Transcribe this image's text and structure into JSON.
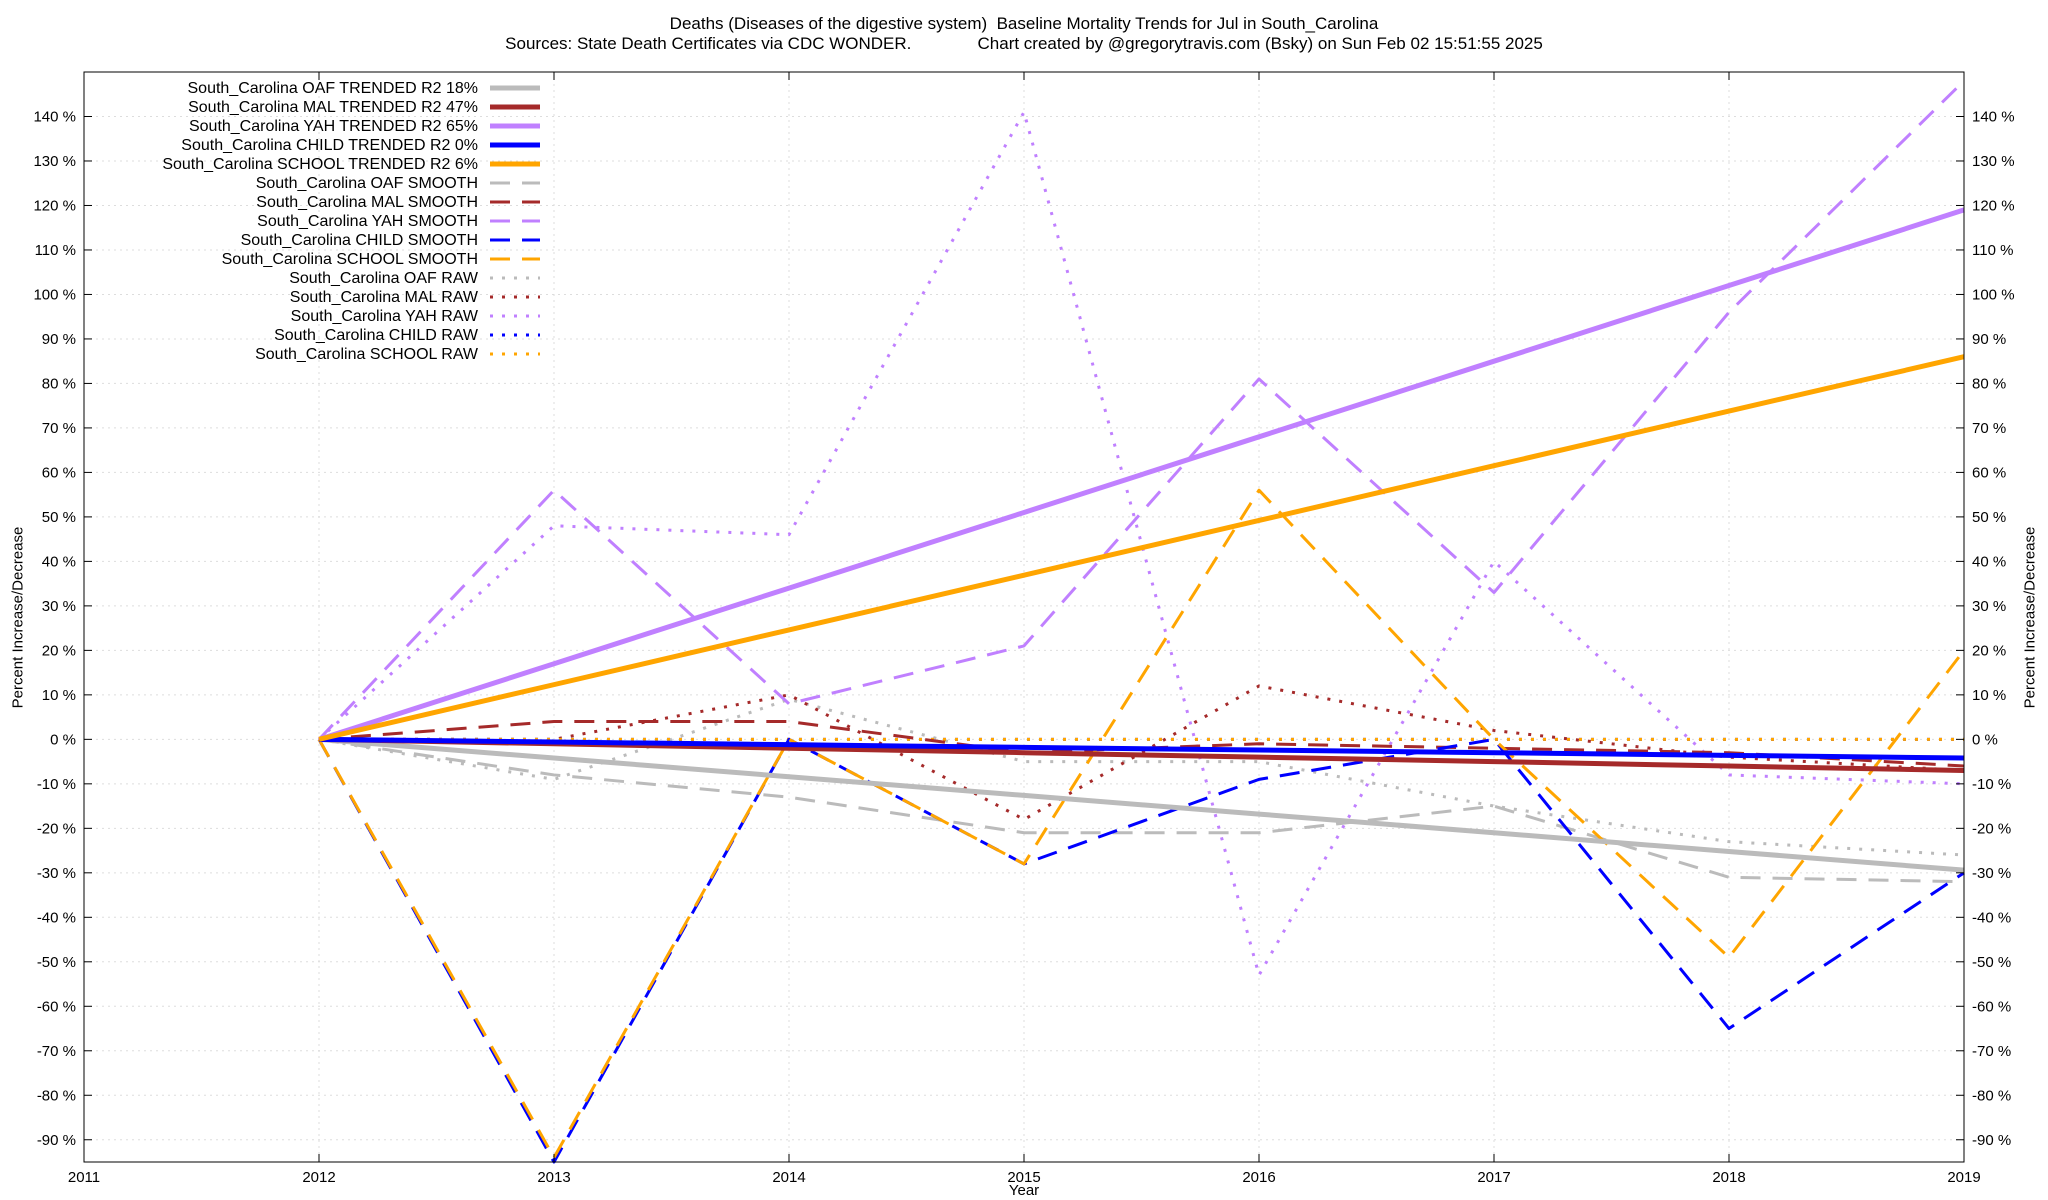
{
  "chart_data": {
    "type": "line",
    "title": "Deaths (Diseases of the digestive system)  Baseline Mortality Trends for Jul in South_Carolina",
    "subtitle": "Sources: State Death Certificates via CDC WONDER.              Chart created by @gregorytravis.com (Bsky) on Sun Feb 02 15:51:55 2025",
    "xlabel": "Year",
    "ylabel": "Percent Increase/Decrease",
    "xlim": [
      2011,
      2019
    ],
    "ylim": [
      -95,
      150
    ],
    "x_ticks": [
      "2011",
      "2012",
      "2013",
      "2014",
      "2015",
      "2016",
      "2017",
      "2018",
      "2019"
    ],
    "y_ticks": [
      {
        "v": 140,
        "label": "140 %"
      },
      {
        "v": 130,
        "label": "130 %"
      },
      {
        "v": 120,
        "label": "120 %"
      },
      {
        "v": 110,
        "label": "110 %"
      },
      {
        "v": 100,
        "label": "100 %"
      },
      {
        "v": 90,
        "label": "90 %"
      },
      {
        "v": 80,
        "label": "80 %"
      },
      {
        "v": 70,
        "label": "70 %"
      },
      {
        "v": 60,
        "label": "60 %"
      },
      {
        "v": 50,
        "label": "50 %"
      },
      {
        "v": 40,
        "label": "40 %"
      },
      {
        "v": 30,
        "label": "30 %"
      },
      {
        "v": 20,
        "label": "20 %"
      },
      {
        "v": 10,
        "label": "10 %"
      },
      {
        "v": 0,
        "label": "0 %"
      },
      {
        "v": -10,
        "label": "-10 %"
      },
      {
        "v": -20,
        "label": "-20 %"
      },
      {
        "v": -30,
        "label": "-30 %"
      },
      {
        "v": -40,
        "label": "-40 %"
      },
      {
        "v": -50,
        "label": "-50 %"
      },
      {
        "v": -60,
        "label": "-60 %"
      },
      {
        "v": -70,
        "label": "-70 %"
      },
      {
        "v": -80,
        "label": "-80 %"
      },
      {
        "v": -90,
        "label": "-90 %"
      }
    ],
    "grid": true,
    "legend_position": "top-left",
    "x": [
      2012,
      2013,
      2014,
      2015,
      2016,
      2017,
      2018,
      2019
    ],
    "series": [
      {
        "name": "South_Carolina OAF TRENDED R2  18%",
        "style": "trended",
        "color": "#bbbbbb",
        "values": [
          0,
          -4.2,
          -8.4,
          -12.6,
          -16.8,
          -21,
          -25.2,
          -29.4
        ]
      },
      {
        "name": "South_Carolina MAL TRENDED R2  47%",
        "style": "trended",
        "color": "#a52a2a",
        "values": [
          0,
          -1,
          -2,
          -3,
          -4,
          -5,
          -6,
          -7
        ]
      },
      {
        "name": "South_Carolina YAH TRENDED R2  65%",
        "style": "trended",
        "color": "#c080ff",
        "values": [
          0,
          17,
          34,
          51,
          68,
          85,
          102,
          119
        ]
      },
      {
        "name": "South_Carolina CHILD TRENDED R2   0%",
        "style": "trended",
        "color": "#0000ff",
        "values": [
          0,
          -0.6,
          -1.2,
          -1.8,
          -2.4,
          -3,
          -3.6,
          -4.2
        ]
      },
      {
        "name": "South_Carolina SCHOOL TRENDED R2   6%",
        "style": "trended",
        "color": "#ffa500",
        "values": [
          0,
          12.3,
          24.6,
          36.9,
          49.2,
          61.5,
          73.8,
          86
        ]
      },
      {
        "name": "South_Carolina OAF SMOOTH",
        "style": "smooth",
        "color": "#bbbbbb",
        "values": [
          0,
          -8,
          -13,
          -21,
          -21,
          -15,
          -31,
          -32
        ]
      },
      {
        "name": "South_Carolina MAL SMOOTH",
        "style": "smooth",
        "color": "#a52a2a",
        "values": [
          0,
          4,
          4,
          -3,
          -1,
          -2,
          -3,
          -6
        ]
      },
      {
        "name": "South_Carolina YAH SMOOTH",
        "style": "smooth",
        "color": "#c080ff",
        "values": [
          0,
          56,
          8,
          21,
          81,
          33,
          96,
          148
        ]
      },
      {
        "name": "South_Carolina CHILD SMOOTH",
        "style": "smooth",
        "color": "#0000ff",
        "values": [
          0,
          -95,
          0,
          -28,
          -9,
          0,
          -65,
          -30
        ]
      },
      {
        "name": "South_Carolina SCHOOL SMOOTH",
        "style": "smooth",
        "color": "#ffa500",
        "values": [
          0,
          -94,
          0,
          -28,
          56,
          0,
          -49,
          20
        ]
      },
      {
        "name": "South_Carolina OAF RAW",
        "style": "raw",
        "color": "#bbbbbb",
        "values": [
          0,
          -9,
          9,
          -5,
          -5,
          -15,
          -23,
          -26
        ]
      },
      {
        "name": "South_Carolina MAL RAW",
        "style": "raw",
        "color": "#a52a2a",
        "values": [
          0,
          0,
          10,
          -18,
          12,
          2,
          -4,
          -7
        ]
      },
      {
        "name": "South_Carolina YAH RAW",
        "style": "raw",
        "color": "#c080ff",
        "values": [
          0,
          48,
          46,
          141,
          -53,
          40,
          -8,
          -10
        ]
      },
      {
        "name": "South_Carolina CHILD RAW",
        "style": "raw",
        "color": "#0000ff",
        "values": [
          0,
          0,
          0,
          0,
          0,
          0,
          0,
          0
        ]
      },
      {
        "name": "South_Carolina SCHOOL RAW",
        "style": "raw",
        "color": "#ffa500",
        "values": [
          0,
          0,
          0,
          0,
          0,
          0,
          0,
          0
        ]
      }
    ]
  }
}
